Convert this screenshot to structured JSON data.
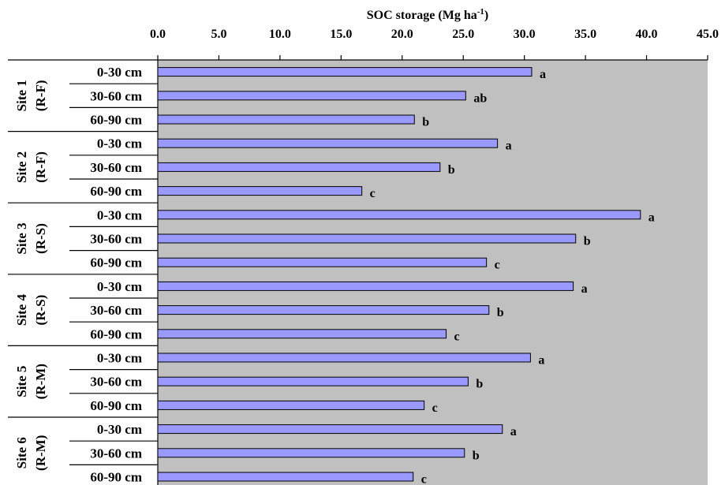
{
  "chart_data": {
    "type": "bar",
    "orientation": "horizontal",
    "title": "",
    "xlabel": "SOC storage (Mg ha",
    "xlabel_superscript": "-1",
    "xlabel_suffix": ")",
    "xlim": [
      0,
      45
    ],
    "x_ticks": [
      "0.0",
      "5.0",
      "10.0",
      "15.0",
      "20.0",
      "25.0",
      "30.0",
      "35.0",
      "40.0",
      "45.0"
    ],
    "axis_position": "top",
    "grid": false,
    "colors": {
      "plot_bg": "#C0C0C0",
      "bar_fill": "#9999FF",
      "bar_stroke": "#000000"
    },
    "groups": [
      {
        "site": "Site 1",
        "type": "(R-F)"
      },
      {
        "site": "Site 2",
        "type": "(R-F)"
      },
      {
        "site": "Site 3",
        "type": "(R-S)"
      },
      {
        "site": "Site 4",
        "type": "(R-S)"
      },
      {
        "site": "Site 5",
        "type": "(R-M)"
      },
      {
        "site": "Site 6",
        "type": "(R-M)"
      }
    ],
    "categories": [
      "0-30 cm",
      "30-60 cm",
      "60-90 cm"
    ],
    "values": [
      [
        30.6,
        25.2,
        21.0
      ],
      [
        27.8,
        23.1,
        16.7
      ],
      [
        39.5,
        34.2,
        26.9
      ],
      [
        34.0,
        27.1,
        23.6
      ],
      [
        30.5,
        25.4,
        21.8
      ],
      [
        28.2,
        25.1,
        20.9
      ]
    ],
    "letters": [
      [
        "a",
        "ab",
        "b"
      ],
      [
        "a",
        "b",
        "c"
      ],
      [
        "a",
        "b",
        "c"
      ],
      [
        "a",
        "b",
        "c"
      ],
      [
        "a",
        "b",
        "c"
      ],
      [
        "a",
        "b",
        "c"
      ]
    ]
  }
}
